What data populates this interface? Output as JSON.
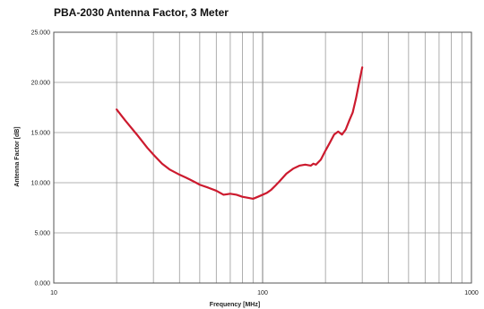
{
  "chart_data": {
    "type": "line",
    "title": "PBA-2030 Antenna Factor, 3 Meter",
    "xlabel": "Frequency [MHz]",
    "ylabel": "Antenna Factor [dB]",
    "xscale": "log",
    "xlim": [
      10,
      1000
    ],
    "ylim": [
      0,
      25
    ],
    "grid": true,
    "x_tick_labels": [
      "10",
      "100",
      "1000"
    ],
    "y_tick_labels": [
      "0.000",
      "5.000",
      "10.000",
      "15.000",
      "20.000",
      "25.000"
    ],
    "series": [
      {
        "color": "#cc1a2e",
        "x": [
          20,
          22,
          25,
          28,
          30,
          33,
          36,
          40,
          43,
          45,
          48,
          50,
          55,
          60,
          65,
          70,
          75,
          80,
          85,
          90,
          95,
          100,
          105,
          110,
          115,
          120,
          130,
          140,
          150,
          160,
          170,
          175,
          180,
          190,
          200,
          210,
          220,
          230,
          240,
          250,
          260,
          270,
          280,
          290,
          300
        ],
        "values": [
          17.3,
          16.2,
          14.8,
          13.5,
          12.8,
          11.9,
          11.3,
          10.8,
          10.5,
          10.3,
          10.0,
          9.8,
          9.5,
          9.2,
          8.8,
          8.9,
          8.8,
          8.6,
          8.5,
          8.4,
          8.6,
          8.8,
          9.0,
          9.3,
          9.7,
          10.1,
          10.9,
          11.4,
          11.7,
          11.8,
          11.7,
          11.9,
          11.8,
          12.3,
          13.2,
          14.0,
          14.8,
          15.1,
          14.8,
          15.3,
          16.2,
          17.0,
          18.4,
          20.0,
          21.5
        ]
      }
    ]
  }
}
